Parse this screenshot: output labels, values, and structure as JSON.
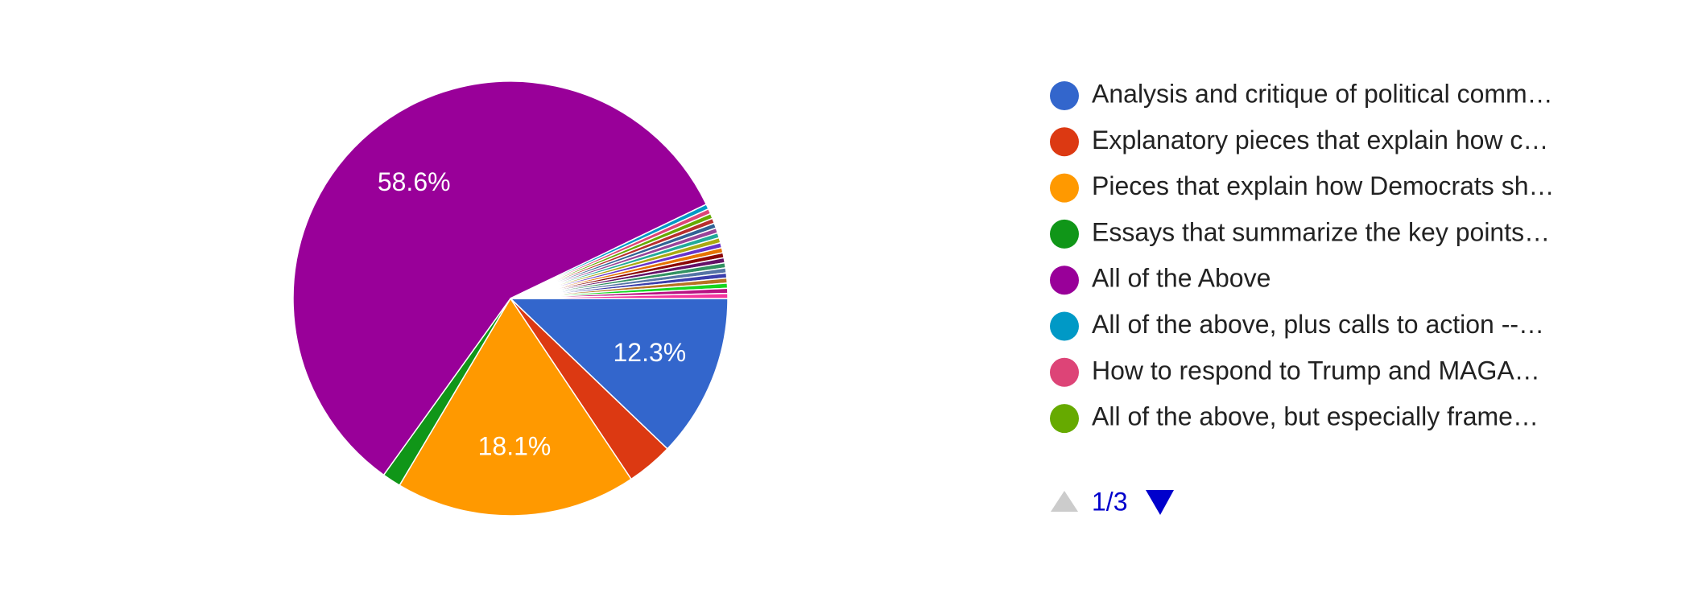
{
  "chart_data": {
    "type": "pie",
    "categories": [
      "Analysis and critique of political comm…",
      "Explanatory pieces that explain how c…",
      "Pieces that explain how Democrats sh…",
      "Essays that summarize the key points…",
      "All of the Above",
      "All of the above, plus calls to action --…",
      "How to respond to Trump and MAGA…",
      "All of the above, but especially frame…",
      null,
      null,
      null,
      null,
      null,
      null,
      null,
      null,
      null,
      null,
      null,
      null,
      null,
      null,
      null,
      null
    ],
    "values": [
      12.3,
      3.5,
      18.1,
      1.4,
      58.6,
      0.38,
      0.38,
      0.38,
      0.38,
      0.38,
      0.38,
      0.38,
      0.38,
      0.38,
      0.38,
      0.38,
      0.38,
      0.38,
      0.38,
      0.38,
      0.38,
      0.38,
      0.38,
      0.38
    ],
    "value_labels": [
      "12.3%",
      null,
      "18.1%",
      null,
      "58.6%",
      null,
      null,
      null,
      null,
      null,
      null,
      null,
      null,
      null,
      null,
      null,
      null,
      null,
      null,
      null,
      null,
      null,
      null,
      null
    ],
    "colors": [
      "#3366cc",
      "#dc3912",
      "#ff9900",
      "#109618",
      "#990099",
      "#0099c6",
      "#dd4477",
      "#66aa00",
      "#b82e2e",
      "#316395",
      "#994499",
      "#22aa99",
      "#aaaa11",
      "#6633cc",
      "#e67300",
      "#8b0707",
      "#651067",
      "#329262",
      "#5574a6",
      "#3b3eac",
      "#b77322",
      "#16d620",
      "#b91383",
      "#f4359e"
    ],
    "pager": "1/3"
  }
}
